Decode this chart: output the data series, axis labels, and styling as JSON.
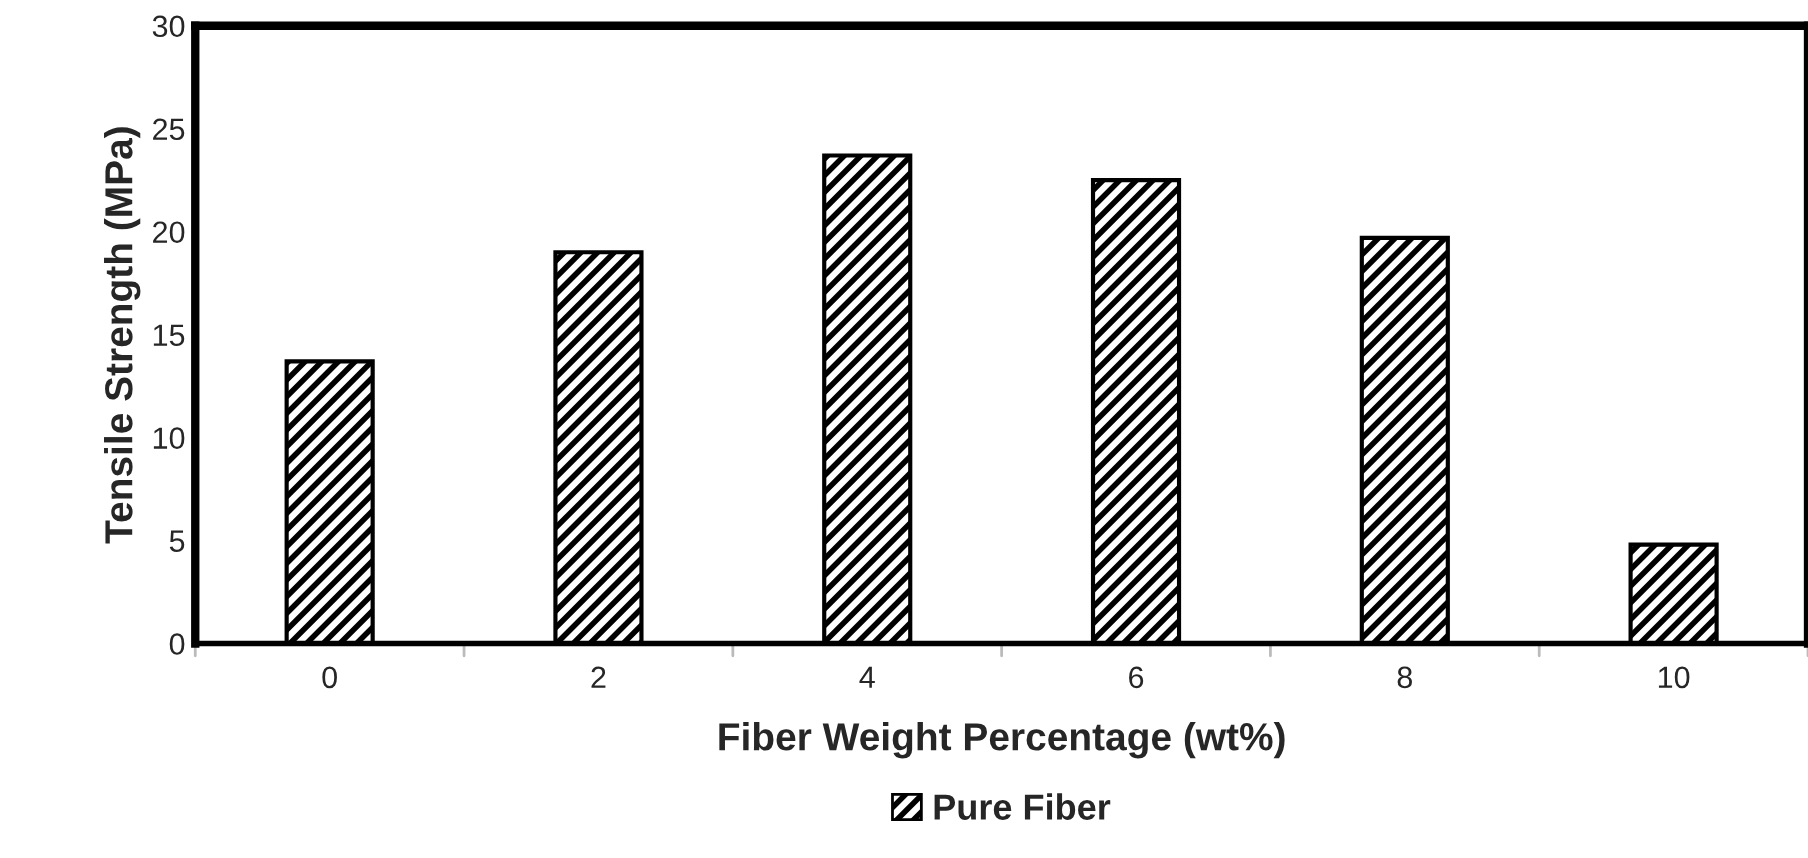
{
  "chart_data": {
    "type": "bar",
    "xlabel": "Fiber Weight Percentage (wt%)",
    "ylabel": "Tensile Strength (MPa)",
    "categories": [
      "0",
      "2",
      "4",
      "6",
      "8",
      "10"
    ],
    "series": [
      {
        "name": "Pure Fiber",
        "color": "#000000",
        "values": [
          13.7,
          19.0,
          23.7,
          22.5,
          19.7,
          4.8
        ]
      }
    ],
    "ylim": [
      0,
      30
    ],
    "yticks": [
      0,
      5,
      10,
      15,
      20,
      25,
      30
    ],
    "grid": false,
    "legend": "bottom"
  }
}
